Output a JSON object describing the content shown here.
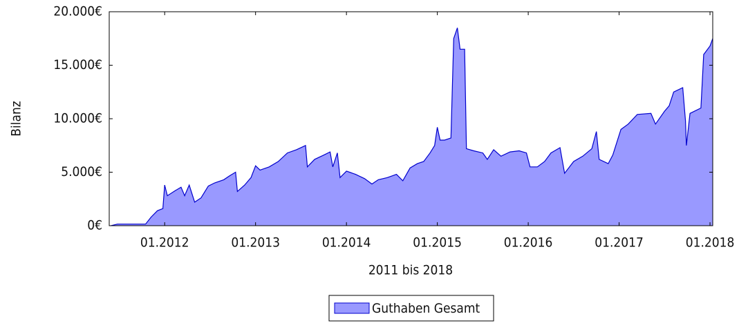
{
  "chart_data": {
    "type": "area",
    "x_label": "2011 bis 2018",
    "y_label": "Bilanz",
    "xlim": [
      2011.39,
      2018.03
    ],
    "xticks": [
      {
        "value": 2012,
        "label": "01.2012"
      },
      {
        "value": 2013,
        "label": "01.2013"
      },
      {
        "value": 2014,
        "label": "01.2014"
      },
      {
        "value": 2015,
        "label": "01.2015"
      },
      {
        "value": 2016,
        "label": "01.2016"
      },
      {
        "value": 2017,
        "label": "01.2017"
      },
      {
        "value": 2018,
        "label": "01.2018"
      }
    ],
    "ylim": [
      0,
      20000
    ],
    "yticks": [
      {
        "value": 0,
        "label": "0€"
      },
      {
        "value": 5000,
        "label": "5.000€"
      },
      {
        "value": 10000,
        "label": "10.000€"
      },
      {
        "value": 15000,
        "label": "15.000€"
      },
      {
        "value": 20000,
        "label": "20.000€"
      }
    ],
    "legend": "bottom",
    "x": [
      2011.41,
      2011.48,
      2011.79,
      2011.85,
      2011.92,
      2011.98,
      2012.0,
      2012.03,
      2012.12,
      2012.18,
      2012.22,
      2012.27,
      2012.33,
      2012.4,
      2012.48,
      2012.55,
      2012.65,
      2012.72,
      2012.78,
      2012.8,
      2012.88,
      2012.95,
      2013.0,
      2013.05,
      2013.15,
      2013.25,
      2013.35,
      2013.45,
      2013.55,
      2013.57,
      2013.65,
      2013.75,
      2013.82,
      2013.85,
      2013.9,
      2013.93,
      2014.0,
      2014.1,
      2014.2,
      2014.28,
      2014.35,
      2014.45,
      2014.55,
      2014.62,
      2014.7,
      2014.78,
      2014.85,
      2014.92,
      2014.97,
      2015.0,
      2015.03,
      2015.08,
      2015.15,
      2015.18,
      2015.22,
      2015.25,
      2015.3,
      2015.32,
      2015.4,
      2015.5,
      2015.55,
      2015.62,
      2015.7,
      2015.8,
      2015.9,
      2015.98,
      2016.02,
      2016.1,
      2016.18,
      2016.25,
      2016.35,
      2016.4,
      2016.5,
      2016.6,
      2016.7,
      2016.75,
      2016.78,
      2016.88,
      2016.93,
      2017.02,
      2017.1,
      2017.2,
      2017.35,
      2017.4,
      2017.5,
      2017.55,
      2017.6,
      2017.7,
      2017.73,
      2017.74,
      2017.78,
      2017.9,
      2017.93,
      2018.0,
      2018.03
    ],
    "series": [
      {
        "name": "Guthaben Gesamt",
        "color": "#9999ff",
        "line_color": "#0000cc",
        "values": [
          0,
          150,
          150,
          800,
          1400,
          1600,
          3800,
          2800,
          3300,
          3600,
          2800,
          3800,
          2200,
          2600,
          3700,
          4000,
          4300,
          4700,
          5000,
          3200,
          3800,
          4500,
          5600,
          5200,
          5500,
          6000,
          6800,
          7100,
          7500,
          5500,
          6200,
          6600,
          6900,
          5500,
          6800,
          4500,
          5100,
          4800,
          4400,
          3900,
          4300,
          4500,
          4800,
          4200,
          5400,
          5800,
          6000,
          6800,
          7500,
          9200,
          8000,
          8000,
          8200,
          17500,
          18500,
          16500,
          16500,
          7200,
          7000,
          6800,
          6200,
          7100,
          6500,
          6900,
          7000,
          6800,
          5500,
          5500,
          6000,
          6800,
          7300,
          4900,
          6000,
          6500,
          7200,
          8800,
          6200,
          5800,
          6600,
          9000,
          9500,
          10400,
          10500,
          9500,
          10700,
          11200,
          12500,
          12900,
          9800,
          7500,
          10500,
          11000,
          16000,
          16800,
          17500
        ]
      }
    ]
  }
}
